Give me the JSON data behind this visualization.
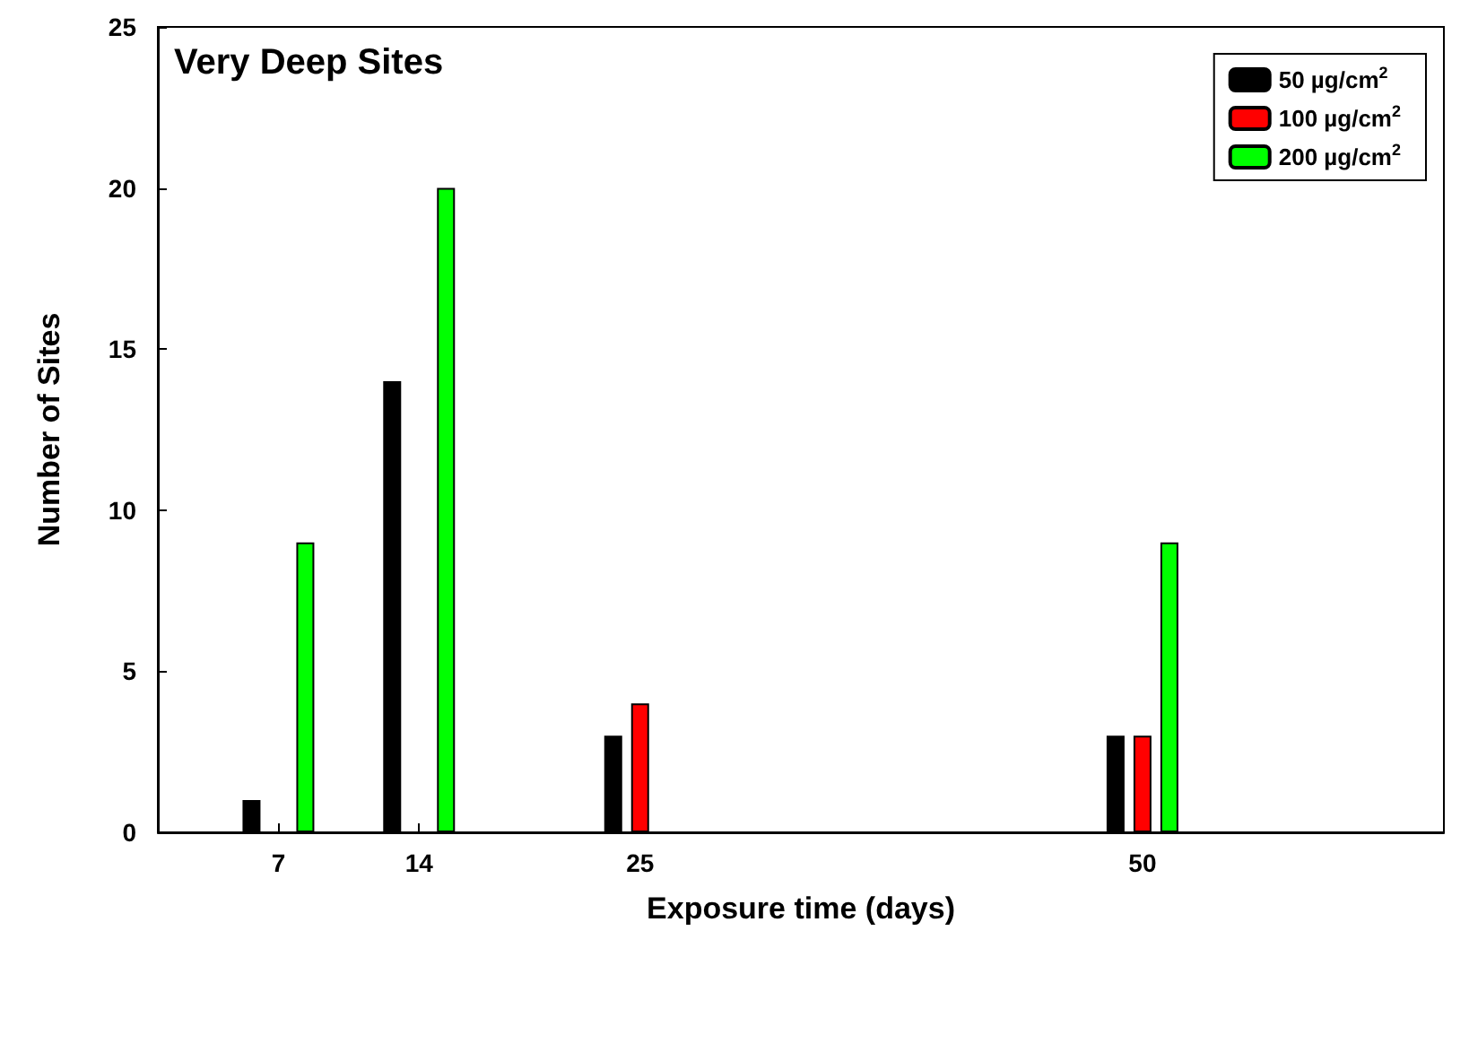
{
  "chart_data": {
    "type": "bar",
    "title": "Very Deep Sites",
    "xlabel": "Exposure time (days)",
    "ylabel": "Number of Sites",
    "x": [
      7,
      14,
      25,
      50
    ],
    "series": [
      {
        "name": "50 µg/cm$^{2}$",
        "color": "#000000",
        "values": [
          1,
          14,
          3,
          3
        ]
      },
      {
        "name": "100 µg/cm$^{2}$",
        "color": "#ff0000",
        "values": [
          null,
          null,
          4,
          3
        ]
      },
      {
        "name": "200 µg/cm$^{2}$",
        "color": "#00ff00",
        "values": [
          9,
          20,
          null,
          9
        ]
      }
    ],
    "xlim": [
      1,
      65
    ],
    "xticks": [
      7,
      14,
      25,
      50
    ],
    "ylim": [
      0,
      25
    ],
    "yticks": [
      0,
      5,
      10,
      15,
      20,
      25
    ],
    "grid": false,
    "legend": "top right"
  }
}
